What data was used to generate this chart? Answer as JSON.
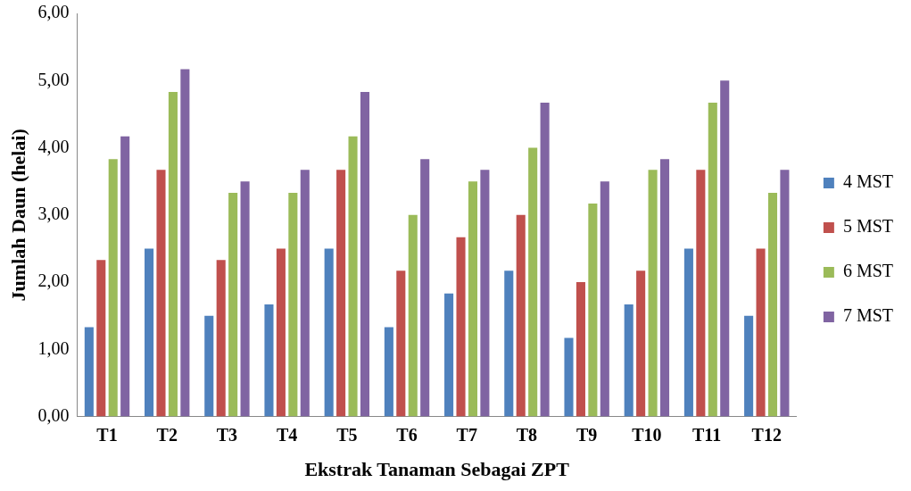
{
  "chart_data": {
    "type": "bar",
    "xlabel": "Ekstrak Tanaman Sebagai ZPT",
    "ylabel": "Jumlah Daun (helai)",
    "categories": [
      "T1",
      "T2",
      "T3",
      "T4",
      "T5",
      "T6",
      "T7",
      "T8",
      "T9",
      "T10",
      "T11",
      "T12"
    ],
    "series": [
      {
        "name": "4 MST",
        "color": "#4f81bd",
        "values": [
          1.33,
          2.5,
          1.5,
          1.67,
          2.5,
          1.33,
          1.83,
          2.17,
          1.17,
          1.67,
          2.5,
          1.5
        ]
      },
      {
        "name": "5 MST",
        "color": "#c0504d",
        "values": [
          2.33,
          3.67,
          2.33,
          2.5,
          3.67,
          2.17,
          2.67,
          3.0,
          2.0,
          2.17,
          3.67,
          2.5
        ]
      },
      {
        "name": "6 MST",
        "color": "#9bbb59",
        "values": [
          3.83,
          4.83,
          3.33,
          3.33,
          4.17,
          3.0,
          3.5,
          4.0,
          3.17,
          3.67,
          4.67,
          3.33
        ]
      },
      {
        "name": "7 MST",
        "color": "#8064a2",
        "values": [
          4.17,
          5.17,
          3.5,
          3.67,
          4.83,
          3.83,
          3.67,
          4.67,
          3.5,
          3.83,
          5.0,
          3.67
        ]
      }
    ],
    "ylim": [
      0,
      6
    ],
    "yticks": [
      {
        "value": 0,
        "label": "0,00"
      },
      {
        "value": 1,
        "label": "1,00"
      },
      {
        "value": 2,
        "label": "2,00"
      },
      {
        "value": 3,
        "label": "3,00"
      },
      {
        "value": 4,
        "label": "4,00"
      },
      {
        "value": 5,
        "label": "5,00"
      },
      {
        "value": 6,
        "label": "6,00"
      }
    ],
    "grid": false,
    "legend": "right"
  }
}
